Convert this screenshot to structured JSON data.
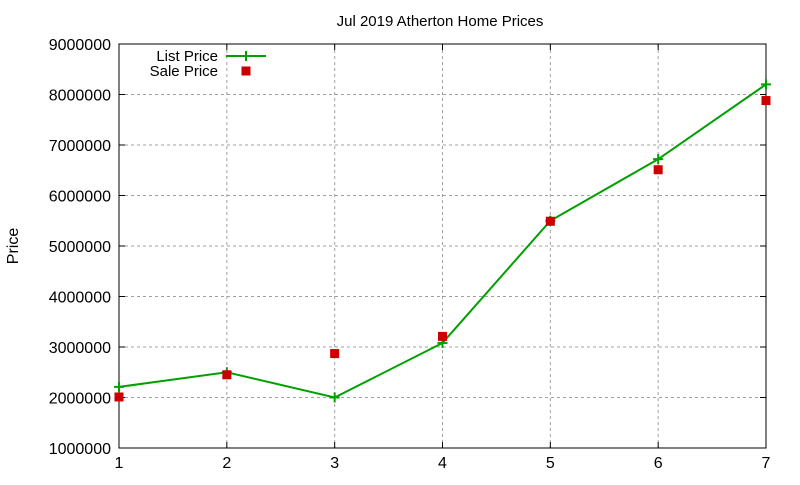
{
  "chart_data": {
    "type": "line",
    "title": "Jul 2019 Atherton Home Prices",
    "xlabel": "",
    "ylabel": "Price",
    "xlim": [
      1,
      7
    ],
    "ylim": [
      1000000,
      9000000
    ],
    "xticks": [
      "1",
      "2",
      "3",
      "4",
      "5",
      "6",
      "7"
    ],
    "yticks": [
      "1000000",
      "2000000",
      "3000000",
      "4000000",
      "5000000",
      "6000000",
      "7000000",
      "8000000",
      "9000000"
    ],
    "grid": true,
    "legend": "top-left",
    "x": [
      1,
      2,
      3,
      4,
      5,
      6,
      7
    ],
    "series": [
      {
        "name": "List Price",
        "style": "line+points",
        "color": "#00a000",
        "values": [
          2210000,
          2500000,
          2000000,
          3080000,
          5500000,
          6720000,
          8200000
        ]
      },
      {
        "name": "Sale Price",
        "style": "points",
        "color": "#cc0000",
        "values": [
          2010000,
          2450000,
          2870000,
          3210000,
          5490000,
          6510000,
          7880000
        ]
      }
    ]
  }
}
